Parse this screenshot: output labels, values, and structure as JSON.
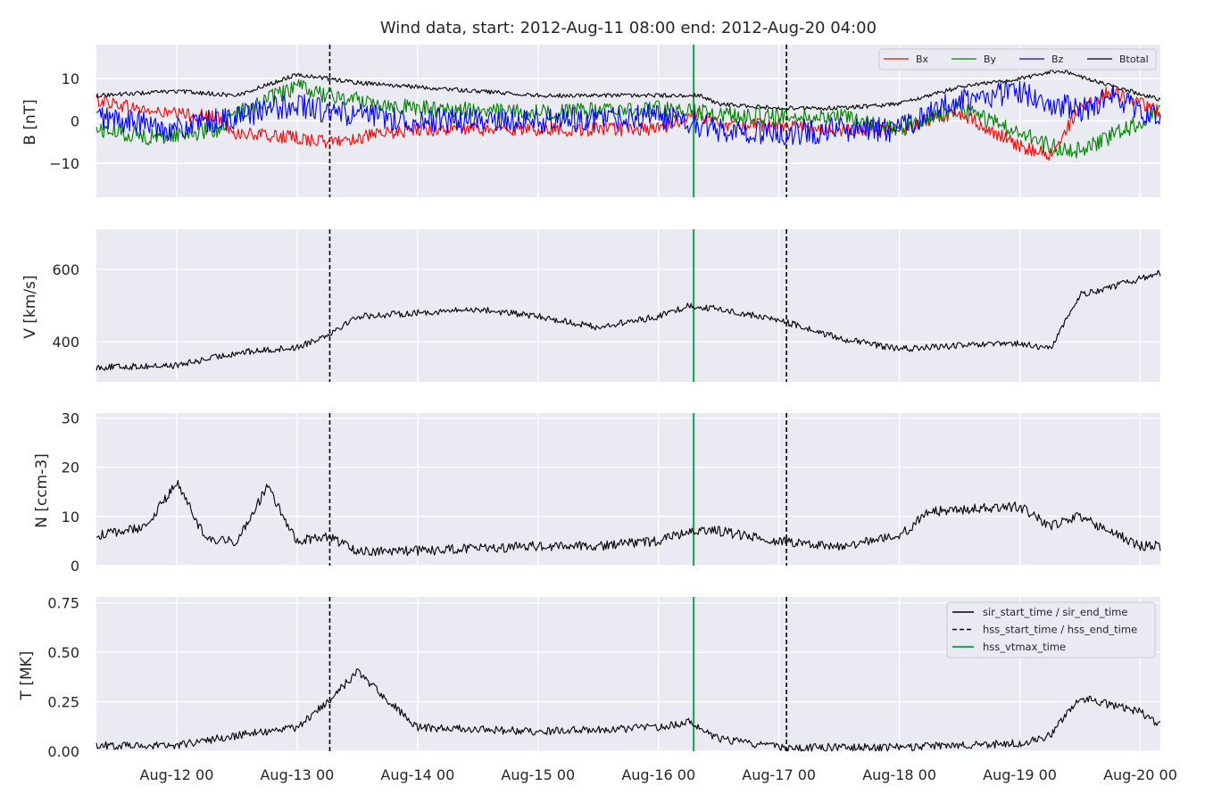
{
  "chart_data": {
    "type": "line",
    "title": "Wind data, start: 2012-Aug-11 08:00  end: 2012-Aug-20 04:00",
    "x_range": [
      "2012-08-11 08:00",
      "2012-08-20 04:00"
    ],
    "x_ticks": [
      {
        "date": "2012-08-12 00:00",
        "label": "Aug-12 00"
      },
      {
        "date": "2012-08-13 00:00",
        "label": "Aug-13 00"
      },
      {
        "date": "2012-08-14 00:00",
        "label": "Aug-14 00"
      },
      {
        "date": "2012-08-15 00:00",
        "label": "Aug-15 00"
      },
      {
        "date": "2012-08-16 00:00",
        "label": "Aug-16 00"
      },
      {
        "date": "2012-08-17 00:00",
        "label": "Aug-17 00"
      },
      {
        "date": "2012-08-18 00:00",
        "label": "Aug-18 00"
      },
      {
        "date": "2012-08-19 00:00",
        "label": "Aug-19 00"
      },
      {
        "date": "2012-08-20 00:00",
        "label": "Aug-20 00"
      }
    ],
    "grid": true,
    "markers": [
      {
        "name": "hss_start_time",
        "date": "2012-08-13 06:30",
        "style": "dashed",
        "color": "#000000"
      },
      {
        "name": "hss_vtmax_time",
        "date": "2012-08-16 07:00",
        "style": "solid",
        "color": "#2ca25f"
      },
      {
        "name": "hss_end_time",
        "date": "2012-08-17 01:30",
        "style": "dashed",
        "color": "#000000"
      }
    ],
    "panels": [
      {
        "id": "B",
        "ylabel": "B [nT]",
        "ylim": [
          -18,
          18
        ],
        "yticks": [
          {
            "value": 10,
            "label": "10"
          },
          {
            "value": 0,
            "label": "0"
          },
          {
            "value": -10,
            "label": "−10"
          }
        ],
        "legend": {
          "placement": "top-right",
          "entries": [
            "Bx",
            "By",
            "Bz",
            "Btotal"
          ]
        },
        "series": [
          {
            "name": "Bx",
            "color": "#ff0000",
            "noise": 1.6,
            "points": [
              [
                "2012-08-11 08:00",
                5
              ],
              [
                "2012-08-11 20:00",
                2
              ],
              [
                "2012-08-12 08:00",
                1
              ],
              [
                "2012-08-12 12:00",
                -3
              ],
              [
                "2012-08-13 00:00",
                -4
              ],
              [
                "2012-08-13 06:00",
                -5
              ],
              [
                "2012-08-13 12:00",
                -4
              ],
              [
                "2012-08-14 00:00",
                -2
              ],
              [
                "2012-08-15 00:00",
                -2
              ],
              [
                "2012-08-16 00:00",
                -2
              ],
              [
                "2012-08-16 08:00",
                2
              ],
              [
                "2012-08-16 12:00",
                -1
              ],
              [
                "2012-08-17 00:00",
                -1
              ],
              [
                "2012-08-17 12:00",
                -2
              ],
              [
                "2012-08-18 00:00",
                -2
              ],
              [
                "2012-08-18 12:00",
                2
              ],
              [
                "2012-08-19 00:00",
                -6
              ],
              [
                "2012-08-19 06:00",
                -8
              ],
              [
                "2012-08-19 12:00",
                3
              ],
              [
                "2012-08-19 18:00",
                7
              ],
              [
                "2012-08-20 04:00",
                2
              ]
            ]
          },
          {
            "name": "By",
            "color": "#008000",
            "noise": 2.0,
            "points": [
              [
                "2012-08-11 08:00",
                -2
              ],
              [
                "2012-08-11 20:00",
                -4
              ],
              [
                "2012-08-12 08:00",
                -2
              ],
              [
                "2012-08-12 14:00",
                3
              ],
              [
                "2012-08-13 00:00",
                8
              ],
              [
                "2012-08-13 06:00",
                6
              ],
              [
                "2012-08-14 00:00",
                3
              ],
              [
                "2012-08-15 00:00",
                2
              ],
              [
                "2012-08-16 00:00",
                3
              ],
              [
                "2012-08-16 08:00",
                2
              ],
              [
                "2012-08-17 00:00",
                1
              ],
              [
                "2012-08-17 12:00",
                1
              ],
              [
                "2012-08-18 00:00",
                -2
              ],
              [
                "2012-08-18 12:00",
                3
              ],
              [
                "2012-08-19 00:00",
                -3
              ],
              [
                "2012-08-19 06:00",
                -6
              ],
              [
                "2012-08-19 12:00",
                -7
              ],
              [
                "2012-08-20 04:00",
                2
              ]
            ]
          },
          {
            "name": "Bz",
            "color": "#0000ff",
            "noise": 3.0,
            "points": [
              [
                "2012-08-11 08:00",
                1
              ],
              [
                "2012-08-12 00:00",
                -2
              ],
              [
                "2012-08-12 12:00",
                1
              ],
              [
                "2012-08-13 00:00",
                4
              ],
              [
                "2012-08-13 06:00",
                2
              ],
              [
                "2012-08-14 00:00",
                0
              ],
              [
                "2012-08-15 00:00",
                0
              ],
              [
                "2012-08-16 00:00",
                1
              ],
              [
                "2012-08-16 12:00",
                -2
              ],
              [
                "2012-08-17 00:00",
                -3
              ],
              [
                "2012-08-17 12:00",
                -2
              ],
              [
                "2012-08-18 00:00",
                -2
              ],
              [
                "2012-08-18 12:00",
                5
              ],
              [
                "2012-08-19 00:00",
                7
              ],
              [
                "2012-08-19 12:00",
                2
              ],
              [
                "2012-08-19 18:00",
                6
              ],
              [
                "2012-08-20 04:00",
                0
              ]
            ]
          },
          {
            "name": "Btotal",
            "color": "#000000",
            "noise": 0.5,
            "points": [
              [
                "2012-08-11 08:00",
                6
              ],
              [
                "2012-08-12 00:00",
                7
              ],
              [
                "2012-08-12 12:00",
                6
              ],
              [
                "2012-08-13 00:00",
                11
              ],
              [
                "2012-08-13 06:00",
                10
              ],
              [
                "2012-08-13 12:00",
                9
              ],
              [
                "2012-08-14 00:00",
                8
              ],
              [
                "2012-08-15 00:00",
                6
              ],
              [
                "2012-08-16 00:00",
                6
              ],
              [
                "2012-08-16 08:00",
                6
              ],
              [
                "2012-08-16 12:00",
                4
              ],
              [
                "2012-08-17 00:00",
                3
              ],
              [
                "2012-08-17 12:00",
                3
              ],
              [
                "2012-08-18 00:00",
                4
              ],
              [
                "2012-08-18 12:00",
                8
              ],
              [
                "2012-08-19 00:00",
                10
              ],
              [
                "2012-08-19 08:00",
                12
              ],
              [
                "2012-08-19 16:00",
                9
              ],
              [
                "2012-08-20 04:00",
                5
              ]
            ]
          }
        ]
      },
      {
        "id": "V",
        "ylabel": "V [km/s]",
        "ylim": [
          290,
          710
        ],
        "yticks": [
          {
            "value": 600,
            "label": "600"
          },
          {
            "value": 400,
            "label": "400"
          }
        ],
        "series": [
          {
            "name": "V",
            "color": "#000000",
            "noise": 9,
            "points": [
              [
                "2012-08-11 08:00",
                330
              ],
              [
                "2012-08-12 00:00",
                335
              ],
              [
                "2012-08-12 12:00",
                370
              ],
              [
                "2012-08-13 00:00",
                385
              ],
              [
                "2012-08-13 06:00",
                420
              ],
              [
                "2012-08-13 12:00",
                470
              ],
              [
                "2012-08-14 00:00",
                480
              ],
              [
                "2012-08-14 12:00",
                490
              ],
              [
                "2012-08-15 00:00",
                470
              ],
              [
                "2012-08-15 12:00",
                440
              ],
              [
                "2012-08-16 00:00",
                470
              ],
              [
                "2012-08-16 06:00",
                500
              ],
              [
                "2012-08-16 12:00",
                490
              ],
              [
                "2012-08-17 00:00",
                460
              ],
              [
                "2012-08-17 12:00",
                410
              ],
              [
                "2012-08-18 00:00",
                380
              ],
              [
                "2012-08-18 12:00",
                390
              ],
              [
                "2012-08-19 00:00",
                395
              ],
              [
                "2012-08-19 06:00",
                380
              ],
              [
                "2012-08-19 12:00",
                530
              ],
              [
                "2012-08-19 18:00",
                550
              ],
              [
                "2012-08-20 04:00",
                590
              ]
            ]
          }
        ]
      },
      {
        "id": "N",
        "ylabel": "N [ccm-3]",
        "ylim": [
          0,
          31
        ],
        "yticks": [
          {
            "value": 30,
            "label": "30"
          },
          {
            "value": 20,
            "label": "20"
          },
          {
            "value": 10,
            "label": "10"
          },
          {
            "value": 0,
            "label": "0"
          }
        ],
        "series": [
          {
            "name": "N",
            "color": "#000000",
            "noise": 1.0,
            "points": [
              [
                "2012-08-11 08:00",
                6
              ],
              [
                "2012-08-11 18:00",
                8
              ],
              [
                "2012-08-12 00:00",
                17
              ],
              [
                "2012-08-12 06:00",
                5
              ],
              [
                "2012-08-12 12:00",
                5
              ],
              [
                "2012-08-12 18:00",
                16
              ],
              [
                "2012-08-13 00:00",
                5
              ],
              [
                "2012-08-13 06:00",
                6
              ],
              [
                "2012-08-13 12:00",
                3
              ],
              [
                "2012-08-14 00:00",
                3
              ],
              [
                "2012-08-15 00:00",
                4
              ],
              [
                "2012-08-15 12:00",
                4
              ],
              [
                "2012-08-16 00:00",
                5
              ],
              [
                "2012-08-16 06:00",
                7
              ],
              [
                "2012-08-16 12:00",
                7
              ],
              [
                "2012-08-17 00:00",
                5
              ],
              [
                "2012-08-17 12:00",
                4
              ],
              [
                "2012-08-18 00:00",
                6
              ],
              [
                "2012-08-18 06:00",
                11
              ],
              [
                "2012-08-19 00:00",
                12
              ],
              [
                "2012-08-19 06:00",
                8
              ],
              [
                "2012-08-19 12:00",
                10
              ],
              [
                "2012-08-20 00:00",
                4
              ],
              [
                "2012-08-20 04:00",
                4
              ]
            ]
          }
        ]
      },
      {
        "id": "T",
        "ylabel": "T [MK]",
        "ylim": [
          0,
          0.78
        ],
        "yticks": [
          {
            "value": 0.75,
            "label": "0.75"
          },
          {
            "value": 0.5,
            "label": "0.50"
          },
          {
            "value": 0.25,
            "label": "0.25"
          },
          {
            "value": 0,
            "label": "0.00"
          }
        ],
        "legend": {
          "placement": "top-right",
          "entries": [
            "sir_start_time / sir_end_time",
            "hss_start_time / hss_end_time",
            "hss_vtmax_time"
          ]
        },
        "series": [
          {
            "name": "T",
            "color": "#000000",
            "noise": 0.02,
            "points": [
              [
                "2012-08-11 08:00",
                0.03
              ],
              [
                "2012-08-12 00:00",
                0.03
              ],
              [
                "2012-08-12 12:00",
                0.08
              ],
              [
                "2012-08-13 00:00",
                0.12
              ],
              [
                "2012-08-13 06:00",
                0.25
              ],
              [
                "2012-08-13 12:00",
                0.4
              ],
              [
                "2012-08-14 00:00",
                0.12
              ],
              [
                "2012-08-15 00:00",
                0.1
              ],
              [
                "2012-08-16 00:00",
                0.12
              ],
              [
                "2012-08-16 06:00",
                0.15
              ],
              [
                "2012-08-16 12:00",
                0.06
              ],
              [
                "2012-08-17 00:00",
                0.02
              ],
              [
                "2012-08-18 00:00",
                0.02
              ],
              [
                "2012-08-18 12:00",
                0.03
              ],
              [
                "2012-08-19 00:00",
                0.04
              ],
              [
                "2012-08-19 06:00",
                0.08
              ],
              [
                "2012-08-19 12:00",
                0.27
              ],
              [
                "2012-08-20 00:00",
                0.2
              ],
              [
                "2012-08-20 04:00",
                0.13
              ]
            ]
          }
        ]
      }
    ]
  }
}
